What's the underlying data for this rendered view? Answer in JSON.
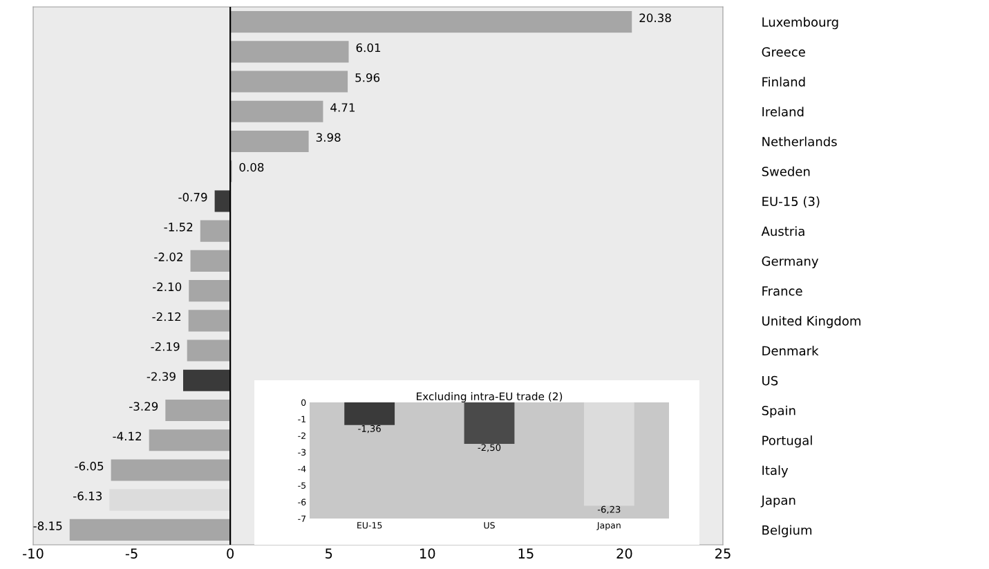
{
  "chart_data": [
    {
      "type": "bar",
      "orientation": "horizontal",
      "categories": [
        "Luxembourg",
        "Greece",
        "Finland",
        "Ireland",
        "Netherlands",
        "Sweden",
        "EU-15 (3)",
        "Austria",
        "Germany",
        "France",
        "United Kingdom",
        "Denmark",
        "US",
        "Spain",
        "Portugal",
        "Italy",
        "Japan",
        "Belgium"
      ],
      "values": [
        20.38,
        6.01,
        5.96,
        4.71,
        3.98,
        0.08,
        -0.79,
        -1.52,
        -2.02,
        -2.1,
        -2.12,
        -2.19,
        -2.39,
        -3.29,
        -4.12,
        -6.05,
        -6.13,
        -8.15
      ],
      "value_labels": [
        "20.38",
        "6.01",
        "5.96",
        "4.71",
        "3.98",
        "0.08",
        "-0.79",
        "-1.52",
        "-2.02",
        "-2.10",
        "-2.12",
        "-2.19",
        "-2.39",
        "-3.29",
        "-4.12",
        "-6.05",
        "-6.13",
        "-8.15"
      ],
      "colors": [
        "#a6a6a6",
        "#a6a6a6",
        "#a6a6a6",
        "#a6a6a6",
        "#a6a6a6",
        "#a6a6a6",
        "#3a3a3a",
        "#a6a6a6",
        "#a6a6a6",
        "#a6a6a6",
        "#a6a6a6",
        "#a6a6a6",
        "#3a3a3a",
        "#a6a6a6",
        "#a6a6a6",
        "#a6a6a6",
        "#dcdcdc",
        "#a6a6a6"
      ],
      "xlim": [
        -10,
        25
      ],
      "xticks": [
        -10,
        -5,
        0,
        5,
        10,
        15,
        20,
        25
      ],
      "ref_lines": [
        {
          "axis": "x",
          "value": 0,
          "color": "#000000"
        }
      ],
      "grid": false,
      "legend": false
    },
    {
      "type": "bar",
      "title": "Excluding intra-EU trade (2)",
      "categories": [
        "EU-15",
        "US",
        "Japan"
      ],
      "values": [
        -1.36,
        -2.5,
        -6.23
      ],
      "value_labels": [
        "-1,36",
        "-2,50",
        "-6,23"
      ],
      "colors": [
        "#3a3a3a",
        "#4a4a4a",
        "#dcdcdc"
      ],
      "ylim": [
        -7,
        0
      ],
      "yticks": [
        0,
        -1,
        -2,
        -3,
        -4,
        -5,
        -6,
        -7
      ],
      "grid": false,
      "legend": false
    }
  ]
}
